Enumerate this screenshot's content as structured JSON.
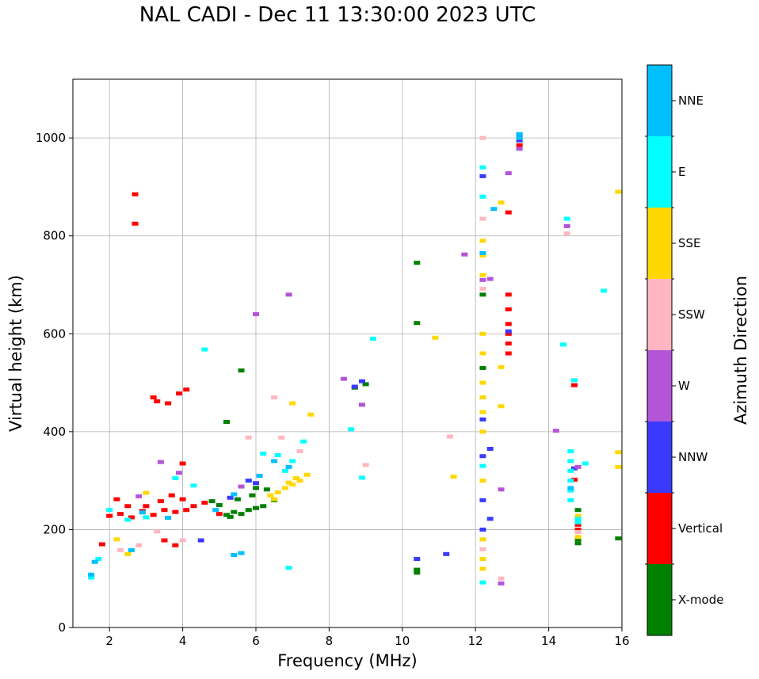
{
  "chart_data": {
    "type": "scatter",
    "title": "NAL CADI - Dec 11 13:30:00 2023 UTC",
    "xlabel": "Frequency (MHz)",
    "ylabel": "Virtual height (km)",
    "xlim": [
      1,
      16
    ],
    "ylim": [
      0,
      1120
    ],
    "xticks": [
      2,
      4,
      6,
      8,
      10,
      12,
      14,
      16
    ],
    "yticks": [
      0,
      200,
      400,
      600,
      800,
      1000
    ],
    "grid": true,
    "colorbar": {
      "label": "Azimuth Direction",
      "categories": [
        {
          "name": "X-mode",
          "color": "#008000"
        },
        {
          "name": "Vertical",
          "color": "#ff0000"
        },
        {
          "name": "NNW",
          "color": "#3a3aff"
        },
        {
          "name": "W",
          "color": "#b455d8"
        },
        {
          "name": "SSW",
          "color": "#ffb6c1"
        },
        {
          "name": "SSE",
          "color": "#ffd700"
        },
        {
          "name": "E",
          "color": "#00ffff"
        },
        {
          "name": "NNE",
          "color": "#00bfff"
        }
      ]
    },
    "traces": [
      {
        "direction": "X-mode",
        "points": [
          [
            5.2,
            230
          ],
          [
            5.4,
            236
          ],
          [
            5.6,
            232
          ],
          [
            5.8,
            240
          ],
          [
            6.0,
            244
          ],
          [
            6.2,
            248
          ],
          [
            5.0,
            250
          ],
          [
            5.5,
            262
          ],
          [
            5.9,
            270
          ],
          [
            6.3,
            282
          ],
          [
            4.8,
            258
          ],
          [
            5.3,
            226
          ],
          [
            10.4,
            118
          ],
          [
            10.4,
            112
          ],
          [
            10.4,
            745
          ],
          [
            10.4,
            622
          ],
          [
            8.7,
            490
          ],
          [
            9.0,
            497
          ],
          [
            12.2,
            530
          ],
          [
            12.2,
            680
          ],
          [
            14.8,
            240
          ],
          [
            14.8,
            180
          ],
          [
            14.8,
            172
          ],
          [
            15.9,
            182
          ],
          [
            5.6,
            525
          ],
          [
            5.2,
            420
          ],
          [
            6.0,
            285
          ],
          [
            6.5,
            260
          ]
        ]
      },
      {
        "direction": "Vertical",
        "points": [
          [
            1.8,
            170
          ],
          [
            2.0,
            228
          ],
          [
            2.3,
            232
          ],
          [
            2.6,
            225
          ],
          [
            2.9,
            238
          ],
          [
            3.2,
            230
          ],
          [
            3.5,
            240
          ],
          [
            3.8,
            236
          ],
          [
            4.1,
            240
          ],
          [
            4.3,
            248
          ],
          [
            3.0,
            248
          ],
          [
            3.4,
            258
          ],
          [
            3.7,
            270
          ],
          [
            4.0,
            262
          ],
          [
            2.2,
            262
          ],
          [
            2.5,
            248
          ],
          [
            3.3,
            462
          ],
          [
            3.6,
            458
          ],
          [
            3.9,
            478
          ],
          [
            4.1,
            486
          ],
          [
            3.2,
            470
          ],
          [
            2.7,
            885
          ],
          [
            2.7,
            825
          ],
          [
            12.9,
            848
          ],
          [
            12.9,
            680
          ],
          [
            12.9,
            650
          ],
          [
            12.9,
            620
          ],
          [
            12.9,
            600
          ],
          [
            12.9,
            580
          ],
          [
            12.9,
            560
          ],
          [
            13.2,
            985
          ],
          [
            14.7,
            302
          ],
          [
            14.8,
            210
          ],
          [
            14.8,
            200
          ],
          [
            14.7,
            495
          ],
          [
            4.0,
            335
          ],
          [
            3.5,
            178
          ],
          [
            3.8,
            168
          ],
          [
            5.0,
            232
          ],
          [
            4.6,
            255
          ]
        ]
      },
      {
        "direction": "NNW",
        "points": [
          [
            12.2,
            425
          ],
          [
            12.2,
            350
          ],
          [
            12.2,
            260
          ],
          [
            12.2,
            200
          ],
          [
            12.4,
            365
          ],
          [
            12.4,
            222
          ],
          [
            13.2,
            1005
          ],
          [
            13.2,
            995
          ],
          [
            12.9,
            605
          ],
          [
            8.9,
            503
          ],
          [
            8.7,
            492
          ],
          [
            10.4,
            140
          ],
          [
            11.2,
            150
          ],
          [
            4.5,
            178
          ],
          [
            5.3,
            265
          ],
          [
            5.8,
            300
          ],
          [
            6.0,
            295
          ],
          [
            14.7,
            325
          ],
          [
            12.2,
            922
          ]
        ]
      },
      {
        "direction": "W",
        "points": [
          [
            12.2,
            710
          ],
          [
            12.4,
            712
          ],
          [
            12.7,
            282
          ],
          [
            12.7,
            90
          ],
          [
            12.9,
            928
          ],
          [
            13.2,
            978
          ],
          [
            14.2,
            402
          ],
          [
            14.5,
            820
          ],
          [
            14.8,
            328
          ],
          [
            8.4,
            508
          ],
          [
            8.9,
            455
          ],
          [
            11.7,
            762
          ],
          [
            6.0,
            640
          ],
          [
            6.9,
            680
          ],
          [
            3.4,
            338
          ],
          [
            3.9,
            316
          ],
          [
            2.8,
            268
          ],
          [
            5.6,
            288
          ]
        ]
      },
      {
        "direction": "SSW",
        "points": [
          [
            12.2,
            835
          ],
          [
            12.2,
            1000
          ],
          [
            12.2,
            692
          ],
          [
            12.2,
            160
          ],
          [
            12.7,
            100
          ],
          [
            14.5,
            805
          ],
          [
            14.8,
            195
          ],
          [
            9.0,
            332
          ],
          [
            11.3,
            390
          ],
          [
            6.5,
            470
          ],
          [
            5.8,
            388
          ],
          [
            4.0,
            178
          ],
          [
            2.3,
            158
          ],
          [
            2.8,
            168
          ],
          [
            3.3,
            196
          ],
          [
            6.7,
            388
          ],
          [
            7.2,
            360
          ]
        ]
      },
      {
        "direction": "SSE",
        "points": [
          [
            6.4,
            270
          ],
          [
            6.6,
            276
          ],
          [
            6.8,
            285
          ],
          [
            7.0,
            292
          ],
          [
            7.2,
            300
          ],
          [
            7.4,
            312
          ],
          [
            6.9,
            296
          ],
          [
            7.1,
            305
          ],
          [
            6.5,
            262
          ],
          [
            12.2,
            790
          ],
          [
            12.2,
            760
          ],
          [
            12.2,
            720
          ],
          [
            12.2,
            600
          ],
          [
            12.2,
            560
          ],
          [
            12.2,
            500
          ],
          [
            12.2,
            470
          ],
          [
            12.2,
            440
          ],
          [
            12.2,
            400
          ],
          [
            12.2,
            300
          ],
          [
            12.2,
            180
          ],
          [
            12.2,
            140
          ],
          [
            12.2,
            120
          ],
          [
            12.7,
            868
          ],
          [
            12.7,
            532
          ],
          [
            12.7,
            452
          ],
          [
            10.9,
            592
          ],
          [
            11.4,
            308
          ],
          [
            15.9,
            890
          ],
          [
            15.9,
            358
          ],
          [
            15.9,
            328
          ],
          [
            14.8,
            228
          ],
          [
            14.8,
            185
          ],
          [
            2.2,
            180
          ],
          [
            2.5,
            150
          ],
          [
            3.0,
            275
          ],
          [
            7.5,
            435
          ],
          [
            7.0,
            458
          ]
        ]
      },
      {
        "direction": "E",
        "points": [
          [
            14.6,
            260
          ],
          [
            14.6,
            280
          ],
          [
            14.6,
            300
          ],
          [
            14.6,
            320
          ],
          [
            14.6,
            340
          ],
          [
            14.6,
            360
          ],
          [
            14.8,
            222
          ],
          [
            14.8,
            215
          ],
          [
            14.5,
            835
          ],
          [
            14.4,
            578
          ],
          [
            14.7,
            505
          ],
          [
            15.0,
            335
          ],
          [
            15.5,
            688
          ],
          [
            12.2,
            880
          ],
          [
            12.2,
            940
          ],
          [
            12.2,
            330
          ],
          [
            12.2,
            92
          ],
          [
            9.2,
            590
          ],
          [
            8.9,
            306
          ],
          [
            8.6,
            405
          ],
          [
            4.6,
            568
          ],
          [
            6.6,
            352
          ],
          [
            7.0,
            340
          ],
          [
            7.3,
            380
          ],
          [
            6.8,
            320
          ],
          [
            6.2,
            355
          ],
          [
            2.5,
            220
          ],
          [
            3.0,
            225
          ],
          [
            3.8,
            305
          ],
          [
            4.3,
            290
          ],
          [
            1.5,
            102
          ],
          [
            1.7,
            140
          ],
          [
            2.0,
            240
          ],
          [
            6.9,
            122
          ]
        ]
      },
      {
        "direction": "NNE",
        "points": [
          [
            13.2,
            1008
          ],
          [
            13.2,
            1000
          ],
          [
            12.5,
            855
          ],
          [
            5.6,
            152
          ],
          [
            5.4,
            148
          ],
          [
            6.5,
            340
          ],
          [
            6.9,
            328
          ],
          [
            6.1,
            310
          ],
          [
            5.4,
            272
          ],
          [
            4.9,
            240
          ],
          [
            3.6,
            224
          ],
          [
            2.9,
            235
          ],
          [
            1.6,
            134
          ],
          [
            1.5,
            108
          ],
          [
            2.6,
            158
          ],
          [
            12.2,
            765
          ],
          [
            14.6,
            285
          ]
        ]
      }
    ]
  }
}
